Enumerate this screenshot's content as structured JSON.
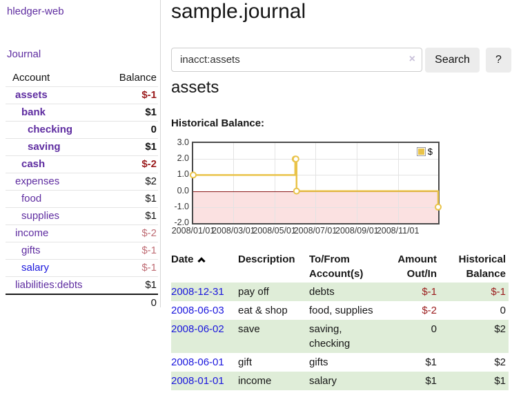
{
  "app": {
    "brand": "hledger-web",
    "nav_journal": "Journal"
  },
  "colors": {
    "link_purple": "#5e2ca0",
    "link_blue": "#1a16dd",
    "neg_strong": "#9a1b1c",
    "neg_soft": "#bf6c74",
    "row_green": "#dfedd8",
    "chart_gold": "#e9c349",
    "chart_pink": "#fbe1e1",
    "zero_line": "#8b1a1a",
    "grid_line": "#e3e3e3",
    "plot_border": "#4a4a4a",
    "clear_icon": "#c9c1da",
    "button_bg": "#ececec"
  },
  "sidebar": {
    "accounts_header": {
      "account": "Account",
      "balance": "Balance"
    },
    "accounts": [
      {
        "name": "assets",
        "balance": "$-1",
        "depth": 1,
        "bold": true,
        "neg": "strong"
      },
      {
        "name": "bank",
        "balance": "$1",
        "depth": 2,
        "bold": true,
        "neg": "none"
      },
      {
        "name": "checking",
        "balance": "0",
        "depth": 3,
        "bold": true,
        "neg": "none"
      },
      {
        "name": "saving",
        "balance": "$1",
        "depth": 3,
        "bold": true,
        "neg": "none"
      },
      {
        "name": "cash",
        "balance": "$-2",
        "depth": 2,
        "bold": true,
        "neg": "strong"
      },
      {
        "name": "expenses",
        "balance": "$2",
        "depth": 1,
        "bold": false,
        "neg": "none"
      },
      {
        "name": "food",
        "balance": "$1",
        "depth": 2,
        "bold": false,
        "neg": "none"
      },
      {
        "name": "supplies",
        "balance": "$1",
        "depth": 2,
        "bold": false,
        "neg": "none"
      },
      {
        "name": "income",
        "balance": "$-2",
        "depth": 1,
        "bold": false,
        "neg": "soft"
      },
      {
        "name": "gifts",
        "balance": "$-1",
        "depth": 2,
        "bold": false,
        "neg": "soft"
      },
      {
        "name": "salary",
        "balance": "$-1",
        "depth": 2,
        "bold": false,
        "neg": "soft",
        "unvisited": true
      },
      {
        "name": "liabilities:debts",
        "balance": "$1",
        "depth": 1,
        "bold": false,
        "neg": "none"
      }
    ],
    "total": "0"
  },
  "header": {
    "title": "sample.journal"
  },
  "search": {
    "value": "inacct:assets",
    "clear_icon": "×",
    "button": "Search",
    "help_button": "?"
  },
  "account_page": {
    "title": "assets",
    "chart_label": "Historical Balance:"
  },
  "chart_data": {
    "type": "line",
    "step": true,
    "title": "Historical Balance",
    "xlabel": "",
    "ylabel": "",
    "grid": true,
    "legend_position": "top-right",
    "xlim": [
      "2008-01-01",
      "2008-12-31"
    ],
    "ylim": [
      -2,
      3
    ],
    "x_ticks": [
      "2008/01/01",
      "2008/03/01",
      "2008/05/01",
      "2008/07/01",
      "2008/09/01",
      "2008/11/01"
    ],
    "y_ticks": [
      "3.0",
      "2.0",
      "1.0",
      "0.0",
      "-1.0",
      "-2.0"
    ],
    "series": [
      {
        "name": "$",
        "color": "#e9c349",
        "points": [
          [
            "2008-01-01",
            1
          ],
          [
            "2008-06-01",
            2
          ],
          [
            "2008-06-02",
            2
          ],
          [
            "2008-06-03",
            0
          ],
          [
            "2008-12-31",
            -1
          ]
        ]
      }
    ]
  },
  "transactions": {
    "columns": [
      {
        "label": "Date",
        "sorted": "asc"
      },
      {
        "label": "Description"
      },
      {
        "label": "To/From\nAccount(s)"
      },
      {
        "label": "Amount\nOut/In",
        "align": "right"
      },
      {
        "label": "Historical\nBalance",
        "align": "right"
      }
    ],
    "rows": [
      {
        "date": "2008-12-31",
        "description": "pay off",
        "to_from": "debts",
        "amount": "$-1",
        "amount_negative": true,
        "balance": "$-1",
        "balance_negative": true
      },
      {
        "date": "2008-06-03",
        "description": "eat & shop",
        "to_from": "food, supplies",
        "amount": "$-2",
        "amount_negative": true,
        "balance": "0",
        "balance_negative": false
      },
      {
        "date": "2008-06-02",
        "description": "save",
        "to_from": "saving,\nchecking",
        "amount": "0",
        "amount_negative": false,
        "balance": "$2",
        "balance_negative": false
      },
      {
        "date": "2008-06-01",
        "description": "gift",
        "to_from": "gifts",
        "amount": "$1",
        "amount_negative": false,
        "balance": "$2",
        "balance_negative": false
      },
      {
        "date": "2008-01-01",
        "description": "income",
        "to_from": "salary",
        "amount": "$1",
        "amount_negative": false,
        "balance": "$1",
        "balance_negative": false
      }
    ]
  }
}
